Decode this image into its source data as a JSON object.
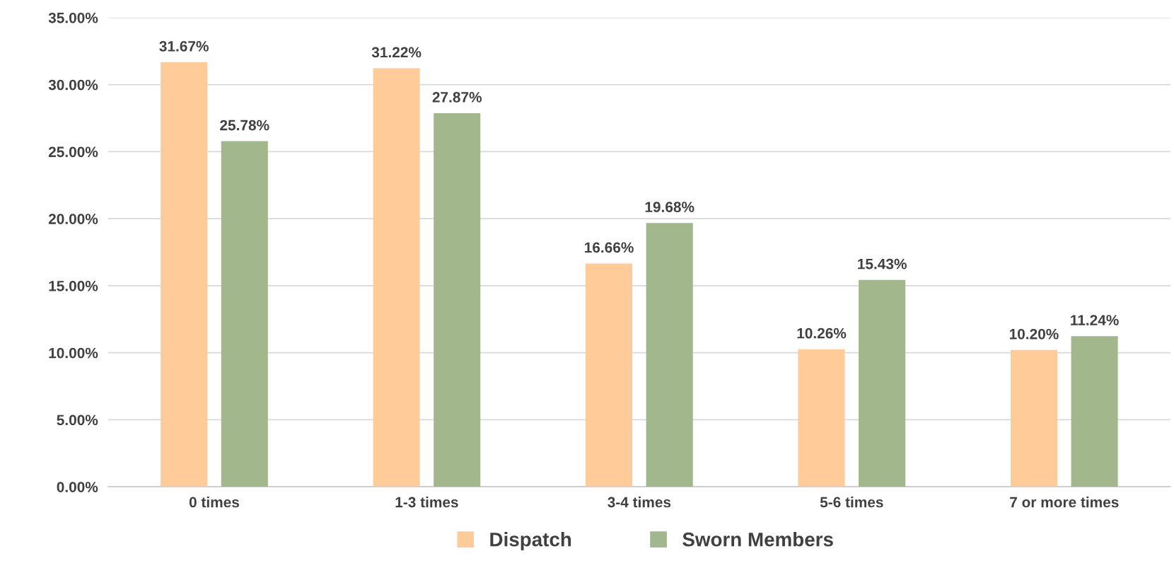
{
  "chart_data": {
    "type": "bar",
    "categories": [
      "0 times",
      "1-3 times",
      "3-4 times",
      "5-6 times",
      "7 or more times"
    ],
    "series": [
      {
        "name": "Dispatch",
        "color": "#ffcc99",
        "values": [
          31.67,
          31.22,
          16.66,
          10.26,
          10.2
        ],
        "value_labels": [
          "31.67%",
          "31.22%",
          "16.66%",
          "10.26%",
          "10.20%"
        ]
      },
      {
        "name": "Sworn Members",
        "color": "#a2b78c",
        "values": [
          25.78,
          27.87,
          19.68,
          15.43,
          11.24
        ],
        "value_labels": [
          "25.78%",
          "27.87%",
          "19.68%",
          "15.43%",
          "11.24%"
        ]
      }
    ],
    "ylim": [
      0,
      35
    ],
    "yticks": [
      {
        "value": 0,
        "label": "0.00%"
      },
      {
        "value": 5,
        "label": "5.00%"
      },
      {
        "value": 10,
        "label": "10.00%"
      },
      {
        "value": 15,
        "label": "15.00%"
      },
      {
        "value": 20,
        "label": "20.00%"
      },
      {
        "value": 25,
        "label": "25.00%"
      },
      {
        "value": 30,
        "label": "30.00%"
      },
      {
        "value": 35,
        "label": "35.00%"
      }
    ],
    "grid": "y",
    "legend": "bottom"
  }
}
